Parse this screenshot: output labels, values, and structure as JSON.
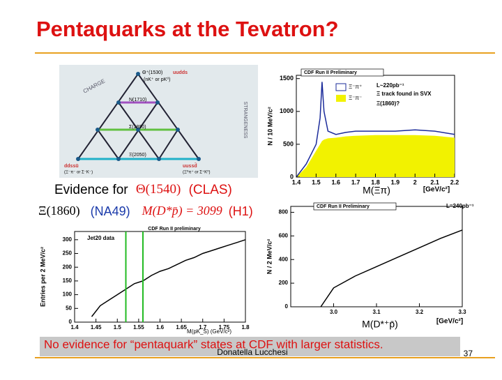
{
  "title": "Pentaquarks at the Tevatron?",
  "diagram": {
    "top_state": "Θ⁺(1530)",
    "top_quarks": "uudds",
    "top_decay": "(nK⁺ or pK⁰)",
    "row2": "N(1710)",
    "row3": "Σ(1890)",
    "row4": "Ξ(2050)",
    "left_quarks": "ddssū",
    "left_decay": "(Ξ⁻π⁻ or Σ⁻K⁻)",
    "right_quarks": "uussd̄",
    "right_decay": "(Ξ⁰π⁺ or Σ⁺K⁰)",
    "charge": "CHARGE",
    "strangeness": "STRANGENESS"
  },
  "evidence": {
    "lead": "Evidence for",
    "theta": "Θ(1540)",
    "clas": "(CLAS)",
    "xi": "Ξ(1860)",
    "na49": "(NA49)",
    "h1_mass": "M(D*p̄) = 3099",
    "h1": "(H1)"
  },
  "plots": [
    {
      "title": "CDF Run II preliminary",
      "annotations": [
        "Jet20 data"
      ],
      "xlabel": "M(pK_S) (GeV/c²)",
      "ylabel": "Entries per 2 MeV/c²",
      "xlim": [
        1.4,
        1.8
      ],
      "ylim": [
        0,
        330
      ],
      "xticks": [
        1.4,
        1.45,
        1.5,
        1.55,
        1.6,
        1.65,
        1.7,
        1.75,
        1.8
      ],
      "yticks": [
        0,
        50,
        100,
        150,
        200,
        250,
        300
      ],
      "highlights": [
        1.52,
        1.56
      ],
      "highlight_color": "#22bb22",
      "series": [
        {
          "color": "#000000",
          "x": [
            1.44,
            1.46,
            1.48,
            1.5,
            1.52,
            1.54,
            1.56,
            1.58,
            1.6,
            1.62,
            1.64,
            1.66,
            1.68,
            1.7,
            1.72,
            1.74,
            1.76,
            1.78,
            1.8
          ],
          "values": [
            20,
            60,
            80,
            100,
            120,
            140,
            150,
            170,
            185,
            195,
            210,
            225,
            235,
            250,
            260,
            270,
            280,
            290,
            300
          ]
        }
      ]
    },
    {
      "title": "CDF Run II Preliminary",
      "annotations": [
        "L~220pb⁻¹",
        "Ξ track found in SVX",
        "Ξ(1860)?"
      ],
      "xlabel": "M(Ξπ)",
      "xunit": "[GeV/c²]",
      "ylabel": "N / 10 MeV/c²",
      "xlim": [
        1.4,
        2.2
      ],
      "ylim": [
        0,
        1550
      ],
      "xticks": [
        1.4,
        1.5,
        1.6,
        1.7,
        1.8,
        1.9,
        2,
        2.1,
        2.2
      ],
      "yticks": [
        0,
        500,
        1000,
        1500
      ],
      "series": [
        {
          "name": "Ξ⁻π⁻",
          "color": "#f2f200",
          "fill": true,
          "x": [
            1.4,
            1.45,
            1.5,
            1.52,
            1.53,
            1.54,
            1.56,
            1.6,
            1.65,
            1.7,
            1.8,
            1.9,
            2,
            2.1,
            2.2
          ],
          "values": [
            0,
            150,
            400,
            500,
            550,
            570,
            590,
            600,
            620,
            630,
            640,
            640,
            640,
            630,
            600
          ]
        },
        {
          "name": "Ξ⁻π⁺",
          "color": "#1a2a9a",
          "x": [
            1.4,
            1.45,
            1.5,
            1.52,
            1.53,
            1.54,
            1.56,
            1.6,
            1.65,
            1.7,
            1.8,
            1.9,
            2,
            2.1,
            2.2
          ],
          "values": [
            0,
            200,
            500,
            900,
            1450,
            1000,
            700,
            650,
            680,
            700,
            700,
            700,
            720,
            700,
            650
          ]
        }
      ]
    },
    {
      "title": "CDF Run II Preliminary",
      "annotations": [
        "L=240pb⁻¹"
      ],
      "xlabel": "M(D*⁺p̄)",
      "xunit": "[GeV/c²]",
      "ylabel": "N / 2 MeV/c²",
      "xlim": [
        2.9,
        3.3
      ],
      "ylim": [
        0,
        850
      ],
      "xticks": [
        {
          "value": 3,
          "label": "3.0"
        },
        3.1,
        3.2,
        3.3
      ],
      "yticks": [
        0,
        200,
        400,
        600,
        800
      ],
      "series": [
        {
          "color": "#000000",
          "x": [
            2.97,
            3.0,
            3.05,
            3.1,
            3.15,
            3.2,
            3.25,
            3.3
          ],
          "values": [
            0,
            160,
            260,
            340,
            420,
            500,
            580,
            650
          ]
        }
      ]
    }
  ],
  "conclusion": "No evidence for “pentaquark” states at CDF with larger statistics.",
  "footer": {
    "author": "Donatella Lucchesi",
    "page": "37"
  }
}
